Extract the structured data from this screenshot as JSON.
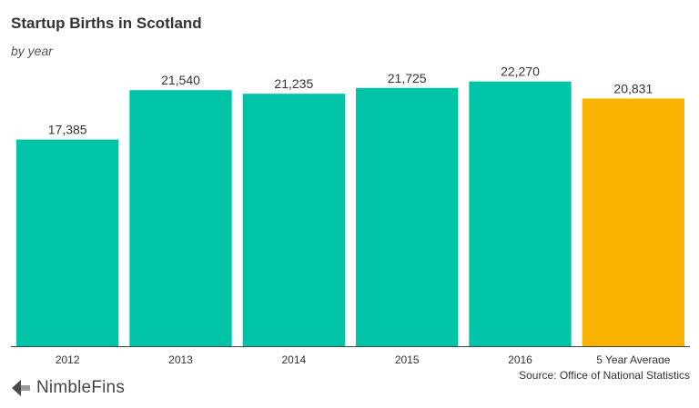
{
  "chart_data": {
    "type": "bar",
    "title": "Startup Births in Scotland",
    "subtitle": "by year",
    "categories": [
      "2012",
      "2013",
      "2014",
      "2015",
      "2016",
      "5 Year Average"
    ],
    "values": [
      17385,
      21540,
      21235,
      21725,
      22270,
      20831
    ],
    "value_labels": [
      "17,385",
      "21,540",
      "21,235",
      "21,725",
      "22,270",
      "20,831"
    ],
    "ylim": [
      0,
      24000
    ],
    "grid": false,
    "legend": "none",
    "colors": {
      "bar": "#00C4A8",
      "highlight": "#F9B200",
      "axis": "#444444"
    },
    "highlight_index": 5
  },
  "source": "Source: Office of National Statistics",
  "brand": {
    "name": "NimbleFins",
    "icon": "nimblefins-logo-icon"
  }
}
